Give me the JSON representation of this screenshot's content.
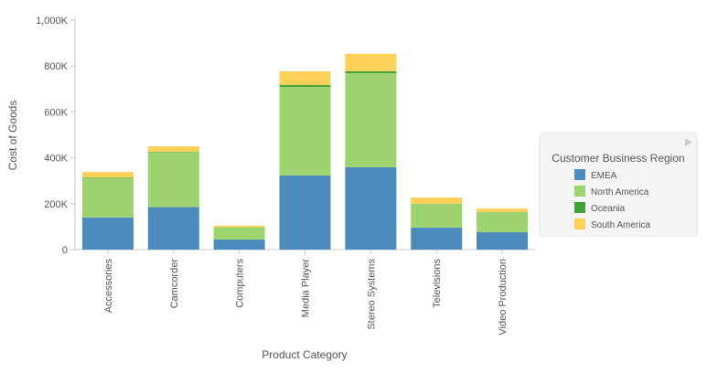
{
  "chart_data": {
    "type": "stacked-bar",
    "x_label": "Product Category",
    "y_label": "Cost of Goods",
    "categories": [
      "Accessories",
      "Camcorder",
      "Computers",
      "Media Player",
      "Stereo Systems",
      "Televisions",
      "Video Production"
    ],
    "series": [
      {
        "name": "EMEA",
        "color": "#4e8bbd",
        "values": [
          140000,
          185000,
          44000,
          323000,
          359000,
          96000,
          76000
        ]
      },
      {
        "name": "North America",
        "color": "#9dd46f",
        "values": [
          170000,
          240000,
          52000,
          386000,
          410000,
          103000,
          87000
        ]
      },
      {
        "name": "Oceania",
        "color": "#44a038",
        "values": [
          3000,
          2000,
          1000,
          8000,
          8000,
          1000,
          1000
        ]
      },
      {
        "name": "South America",
        "color": "#fdd05a",
        "values": [
          25000,
          23000,
          7000,
          60000,
          76000,
          27000,
          15000
        ]
      }
    ],
    "ylim": [
      0,
      1000000
    ],
    "yticks": [
      0,
      {
        "value": 200000,
        "label": "200K"
      },
      {
        "value": 400000,
        "label": "400K"
      },
      {
        "value": 600000,
        "label": "600K"
      },
      {
        "value": 800000,
        "label": "800K"
      },
      {
        "value": 1000000,
        "label": "1,000K"
      }
    ],
    "legend": {
      "title": "Customer Business Region",
      "position": "right"
    }
  }
}
